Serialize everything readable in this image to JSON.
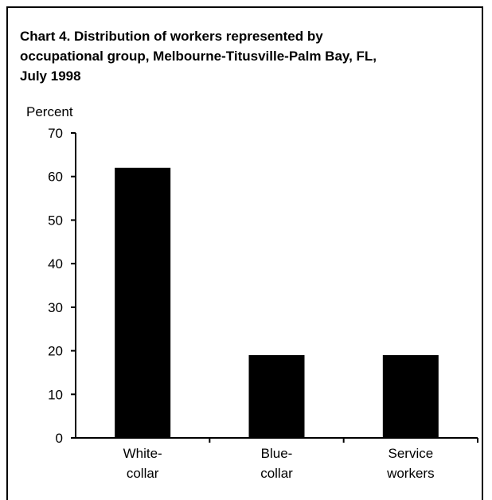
{
  "chart_data": {
    "type": "bar",
    "title_lines": [
      "Chart 4. Distribution of workers represented by",
      "occupational group, Melbourne-Titusville-Palm Bay, FL,",
      "July 1998"
    ],
    "ylabel": "Percent",
    "xlabel": "",
    "ylim": [
      0,
      70
    ],
    "yticks": [
      0,
      10,
      20,
      30,
      40,
      50,
      60,
      70
    ],
    "categories": [
      [
        "White-",
        "collar"
      ],
      [
        "Blue-",
        "collar"
      ],
      [
        "Service",
        "workers"
      ]
    ],
    "values": [
      62,
      19,
      19
    ],
    "grid": false,
    "colors": {
      "bar": "#000000",
      "axis": "#000000"
    }
  }
}
